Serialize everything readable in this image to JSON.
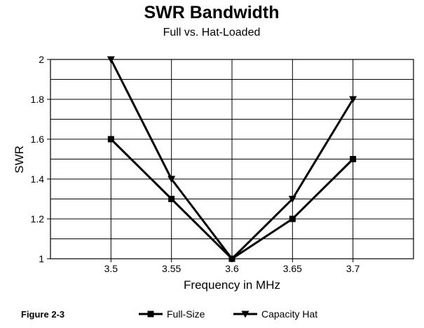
{
  "figure_label": "Figure 2-3",
  "chart_data": {
    "type": "line",
    "title": "SWR Bandwidth",
    "subtitle": "Full vs. Hat-Loaded",
    "xlabel": "Frequency in MHz",
    "ylabel": "SWR",
    "categories": [
      "3.5",
      "3.55",
      "3.6",
      "3.65",
      "3.7"
    ],
    "x": [
      3.5,
      3.55,
      3.6,
      3.65,
      3.7
    ],
    "xlim": [
      3.45,
      3.75
    ],
    "ylim": [
      1,
      2
    ],
    "yticks": [
      "1",
      "1.2",
      "1.4",
      "1.6",
      "1.8",
      "2"
    ],
    "ytick_values": [
      1,
      1.2,
      1.4,
      1.6,
      1.8,
      2
    ],
    "grid": true,
    "legend_position": "bottom",
    "series": [
      {
        "name": "Full-Size",
        "marker": "square",
        "color": "#000000",
        "values": [
          1.6,
          1.3,
          1.0,
          1.2,
          1.5
        ]
      },
      {
        "name": "Capacity Hat",
        "marker": "triangle-down",
        "color": "#000000",
        "values": [
          2.0,
          1.4,
          1.0,
          1.3,
          1.8
        ]
      }
    ]
  }
}
